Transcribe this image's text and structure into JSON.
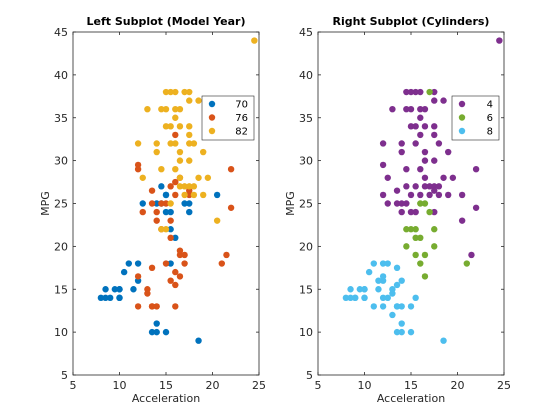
{
  "chart_data": [
    {
      "type": "scatter",
      "title": "Left Subplot (Model Year)",
      "xlabel": "Acceleration",
      "ylabel": "MPG",
      "xlim": [
        5,
        25
      ],
      "ylim": [
        5,
        45
      ],
      "xticks": [
        "5",
        "10",
        "15",
        "20",
        "25"
      ],
      "yticks": [
        "5",
        "10",
        "15",
        "20",
        "25",
        "30",
        "35",
        "40",
        "45"
      ],
      "grid": false,
      "legend_position": "top-right",
      "marker": "circle",
      "series": [
        {
          "name": "70",
          "color": "#0072BD",
          "points": [
            [
              12,
              18
            ],
            [
              11.5,
              15
            ],
            [
              11,
              18
            ],
            [
              12,
              16
            ],
            [
              10.5,
              17
            ],
            [
              10,
              15
            ],
            [
              9,
              14
            ],
            [
              8.5,
              14
            ],
            [
              10,
              15
            ],
            [
              8.5,
              15
            ],
            [
              10,
              14
            ],
            [
              8,
              14
            ],
            [
              9.5,
              15
            ],
            [
              10,
              14
            ],
            [
              15.5,
              24
            ],
            [
              15.5,
              22
            ],
            [
              15.5,
              18
            ],
            [
              16,
              21
            ],
            [
              14.5,
              27
            ],
            [
              15,
              26
            ],
            [
              14.5,
              25
            ],
            [
              17.5,
              24
            ],
            [
              12.5,
              25
            ],
            [
              15,
              24
            ],
            [
              14,
              25
            ],
            [
              15,
              26
            ],
            [
              20.5,
              26
            ],
            [
              17,
              25
            ],
            [
              17.5,
              25
            ],
            [
              13.5,
              10
            ],
            [
              15,
              10
            ],
            [
              14,
              10
            ],
            [
              18.5,
              9
            ],
            [
              14,
              11
            ]
          ]
        },
        {
          "name": "76",
          "color": "#D95319",
          "points": [
            [
              16.5,
              28
            ],
            [
              14.5,
              25
            ],
            [
              15,
              25
            ],
            [
              15.5,
              27
            ],
            [
              16,
              26
            ],
            [
              12.5,
              24
            ],
            [
              13.5,
              25
            ],
            [
              15.5,
              23
            ],
            [
              14,
              23
            ],
            [
              14.5,
              22
            ],
            [
              15.5,
              21
            ],
            [
              12,
              29
            ],
            [
              15,
              18
            ],
            [
              16.5,
              19
            ],
            [
              16.5,
              19.5
            ],
            [
              21,
              18
            ],
            [
              21.5,
              19
            ],
            [
              17,
              18
            ],
            [
              15.5,
              16
            ],
            [
              16.5,
              16.5
            ],
            [
              13,
              14.5
            ],
            [
              13.5,
              13
            ],
            [
              13.5,
              17.5
            ],
            [
              13,
              15
            ],
            [
              12,
              13
            ],
            [
              13.5,
              13
            ],
            [
              14,
              13
            ],
            [
              16,
              13
            ],
            [
              16,
              15.5
            ],
            [
              16,
              17
            ],
            [
              17,
              19
            ],
            [
              22,
              24.5
            ],
            [
              22,
              29
            ],
            [
              16,
              27.5
            ],
            [
              16,
              33
            ],
            [
              17.5,
              26
            ],
            [
              13.5,
              26.5
            ],
            [
              14,
              24
            ],
            [
              12,
              16.5
            ],
            [
              12,
              29.5
            ],
            [
              17.5,
              26.5
            ]
          ]
        },
        {
          "name": "82",
          "color": "#EDB120",
          "points": [
            [
              15.5,
              38
            ],
            [
              15,
              38
            ],
            [
              16,
              38
            ],
            [
              16.5,
              36
            ],
            [
              14.5,
              36
            ],
            [
              15,
              36
            ],
            [
              17,
              38
            ],
            [
              13,
              36
            ],
            [
              16,
              36
            ],
            [
              17.5,
              34
            ],
            [
              15,
              34
            ],
            [
              15.5,
              32
            ],
            [
              14,
              32
            ],
            [
              18,
              32
            ],
            [
              16.5,
              31
            ],
            [
              19,
              31
            ],
            [
              16.5,
              28
            ],
            [
              12,
              32
            ],
            [
              17,
              27
            ],
            [
              16.5,
              27
            ],
            [
              17.5,
              27
            ],
            [
              18,
              27
            ],
            [
              18.5,
              28
            ],
            [
              19.5,
              28
            ],
            [
              18,
              26
            ],
            [
              19,
              26
            ],
            [
              17.5,
              33
            ],
            [
              14.5,
              22
            ],
            [
              15,
              22
            ],
            [
              15.5,
              25
            ],
            [
              17.5,
              30
            ],
            [
              20.5,
              23
            ],
            [
              24.5,
              44
            ],
            [
              16.5,
              30
            ],
            [
              14.5,
              29
            ],
            [
              18.5,
              37
            ],
            [
              16,
              29
            ],
            [
              17.5,
              37
            ],
            [
              17,
              26
            ],
            [
              16,
              32
            ],
            [
              17.5,
              32
            ],
            [
              15.5,
              34
            ],
            [
              16.5,
              34
            ],
            [
              14,
              31
            ],
            [
              12.5,
              28
            ],
            [
              16,
              35
            ],
            [
              17.5,
              38
            ]
          ]
        }
      ]
    },
    {
      "type": "scatter",
      "title": "Right Subplot (Cylinders)",
      "xlabel": "Acceleration",
      "ylabel": "MPG",
      "xlim": [
        5,
        25
      ],
      "ylim": [
        5,
        45
      ],
      "xticks": [
        "5",
        "10",
        "15",
        "20",
        "25"
      ],
      "yticks": [
        "5",
        "10",
        "15",
        "20",
        "25",
        "30",
        "35",
        "40",
        "45"
      ],
      "grid": false,
      "legend_position": "top-right",
      "marker": "circle",
      "series": [
        {
          "name": "4",
          "color": "#7E2F8E",
          "points": [
            [
              15.5,
              38
            ],
            [
              14.5,
              38
            ],
            [
              15,
              38
            ],
            [
              16,
              38
            ],
            [
              16.5,
              36
            ],
            [
              14.5,
              36
            ],
            [
              15,
              36
            ],
            [
              13,
              36
            ],
            [
              16,
              36
            ],
            [
              17.5,
              34
            ],
            [
              15,
              34
            ],
            [
              15.5,
              32
            ],
            [
              14,
              32
            ],
            [
              18,
              32
            ],
            [
              16.5,
              31
            ],
            [
              19,
              31
            ],
            [
              16.5,
              28
            ],
            [
              12,
              32
            ],
            [
              17,
              27
            ],
            [
              16.5,
              27
            ],
            [
              17.5,
              27
            ],
            [
              18,
              27
            ],
            [
              18.5,
              28
            ],
            [
              19.5,
              28
            ],
            [
              18,
              26
            ],
            [
              19,
              26
            ],
            [
              17.5,
              33
            ],
            [
              14.5,
              27
            ],
            [
              15,
              26
            ],
            [
              14.5,
              25
            ],
            [
              17.5,
              24
            ],
            [
              12.5,
              25
            ],
            [
              15,
              24
            ],
            [
              14,
              25
            ],
            [
              20.5,
              26
            ],
            [
              20.5,
              23
            ],
            [
              24.5,
              44
            ],
            [
              16.5,
              30
            ],
            [
              14.5,
              29
            ],
            [
              18.5,
              37
            ],
            [
              16,
              29
            ],
            [
              17.5,
              37
            ],
            [
              12,
              29.5
            ],
            [
              16,
              33
            ],
            [
              22,
              24.5
            ],
            [
              22,
              29
            ],
            [
              15.5,
              27
            ],
            [
              16,
              26
            ],
            [
              13.5,
              26.5
            ],
            [
              12,
              26
            ],
            [
              14,
              24
            ],
            [
              13.5,
              25
            ],
            [
              21.5,
              19
            ],
            [
              17.5,
              30
            ],
            [
              14,
              31
            ],
            [
              12.5,
              28
            ],
            [
              16,
              35
            ],
            [
              17.5,
              38
            ],
            [
              15.5,
              34
            ],
            [
              16.5,
              34
            ],
            [
              17,
              26
            ],
            [
              15.5,
              24
            ],
            [
              17.5,
              26.5
            ]
          ]
        },
        {
          "name": "6",
          "color": "#77AC30",
          "points": [
            [
              15.5,
              22
            ],
            [
              15,
              22
            ],
            [
              14.5,
              22
            ],
            [
              16,
              21
            ],
            [
              15.5,
              19
            ],
            [
              16,
              18
            ],
            [
              16.5,
              16.5
            ],
            [
              17.5,
              20
            ],
            [
              17.5,
              22
            ],
            [
              16.5,
              25
            ],
            [
              16,
              25
            ],
            [
              15.5,
              21
            ],
            [
              21,
              18
            ],
            [
              17,
              38
            ],
            [
              17,
              24
            ],
            [
              16.5,
              19
            ],
            [
              14.5,
              20
            ]
          ]
        },
        {
          "name": "8",
          "color": "#4DBEEE",
          "points": [
            [
              12,
              18
            ],
            [
              11.5,
              15
            ],
            [
              11,
              18
            ],
            [
              12,
              16
            ],
            [
              10.5,
              17
            ],
            [
              10,
              15
            ],
            [
              9,
              14
            ],
            [
              8.5,
              14
            ],
            [
              10,
              15
            ],
            [
              8.5,
              15
            ],
            [
              10,
              14
            ],
            [
              8,
              14
            ],
            [
              9.5,
              15
            ],
            [
              10,
              14
            ],
            [
              13.5,
              10
            ],
            [
              15,
              10
            ],
            [
              14,
              10
            ],
            [
              18.5,
              9
            ],
            [
              14,
              11
            ],
            [
              13,
              14.5
            ],
            [
              13.5,
              13
            ],
            [
              13.5,
              17.5
            ],
            [
              13,
              15
            ],
            [
              12,
              13
            ],
            [
              13.5,
              13
            ],
            [
              14,
              13
            ],
            [
              15,
              13
            ],
            [
              12,
              16.5
            ],
            [
              12.5,
              14
            ],
            [
              11,
              13
            ],
            [
              15.5,
              14
            ],
            [
              13.5,
              15.5
            ],
            [
              12,
              14
            ],
            [
              11.5,
              16
            ],
            [
              13,
              12
            ],
            [
              12.5,
              18
            ],
            [
              9,
              14
            ],
            [
              14,
              16
            ]
          ]
        }
      ]
    }
  ]
}
